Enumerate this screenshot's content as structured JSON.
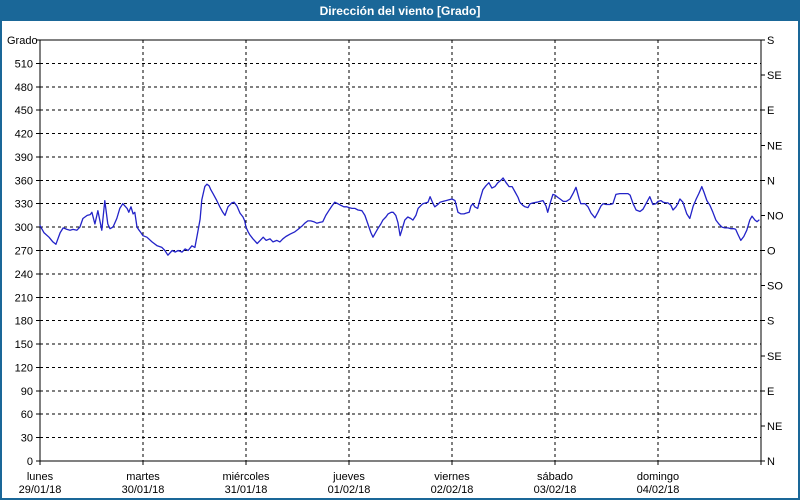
{
  "window": {
    "title": "Dirección del viento [Grado]"
  },
  "chart": {
    "colors": {
      "titlebar": "#1A6798",
      "frame": "#1A6798",
      "line": "#2323C8",
      "grid": "#000000",
      "axis": "#000000",
      "background": "#FFFFFF",
      "text": "#000000"
    },
    "y_axis": {
      "label": "Grado",
      "min": 0,
      "max": 540,
      "tick_step": 30
    },
    "right_axis": {
      "tick_step": 45,
      "labels_bottom_to_top": [
        "N",
        "NE",
        "E",
        "SE",
        "S",
        "SO",
        "O",
        "NO",
        "N",
        "NE",
        "E",
        "SE",
        "S"
      ]
    }
  },
  "chart_data": {
    "type": "line",
    "title": "Dirección del viento [Grado]",
    "ylabel": "Grado",
    "ylim": [
      0,
      540
    ],
    "y_tick_step": 30,
    "grid": "dashed",
    "legend": "none",
    "x_unit": "hours since lunes 29/01/18 00:00",
    "xlim": [
      0,
      168
    ],
    "days": [
      {
        "name": "lunes",
        "date": "29/01/18"
      },
      {
        "name": "martes",
        "date": "30/01/18"
      },
      {
        "name": "miércoles",
        "date": "31/01/18"
      },
      {
        "name": "jueves",
        "date": "01/02/18"
      },
      {
        "name": "viernes",
        "date": "02/02/18"
      },
      {
        "name": "sábado",
        "date": "03/02/18"
      },
      {
        "name": "domingo",
        "date": "04/02/18"
      }
    ],
    "right_axis_compass": [
      "N",
      "NE",
      "E",
      "SE",
      "S",
      "SO",
      "O",
      "NO",
      "N",
      "NE",
      "E",
      "SE",
      "S"
    ],
    "series": [
      {
        "name": "Dirección del viento",
        "color": "#2323C8",
        "points": [
          [
            0.0,
            302
          ],
          [
            0.9,
            293
          ],
          [
            2.1,
            287
          ],
          [
            3.0,
            281
          ],
          [
            3.7,
            278
          ],
          [
            4.7,
            293
          ],
          [
            5.4,
            299
          ],
          [
            6.3,
            297
          ],
          [
            7.0,
            296
          ],
          [
            7.7,
            297
          ],
          [
            8.6,
            296
          ],
          [
            9.3,
            300
          ],
          [
            10.0,
            311
          ],
          [
            11.0,
            315
          ],
          [
            11.7,
            316
          ],
          [
            12.1,
            319
          ],
          [
            12.8,
            304
          ],
          [
            13.5,
            321
          ],
          [
            14.4,
            296
          ],
          [
            15.1,
            334
          ],
          [
            15.8,
            304
          ],
          [
            16.3,
            298
          ],
          [
            17.0,
            300
          ],
          [
            17.9,
            311
          ],
          [
            18.6,
            324
          ],
          [
            19.3,
            330
          ],
          [
            20.3,
            324
          ],
          [
            20.7,
            319
          ],
          [
            21.2,
            326
          ],
          [
            21.7,
            317
          ],
          [
            22.1,
            319
          ],
          [
            22.6,
            300
          ],
          [
            23.1,
            296
          ],
          [
            23.5,
            293
          ],
          [
            24.0,
            289
          ],
          [
            24.9,
            287
          ],
          [
            26.1,
            281
          ],
          [
            27.3,
            276
          ],
          [
            28.4,
            274
          ],
          [
            29.1,
            270
          ],
          [
            29.8,
            264
          ],
          [
            30.8,
            270
          ],
          [
            31.5,
            268
          ],
          [
            32.2,
            270
          ],
          [
            33.1,
            268
          ],
          [
            33.8,
            272
          ],
          [
            34.5,
            270
          ],
          [
            35.4,
            276
          ],
          [
            36.1,
            274
          ],
          [
            36.6,
            289
          ],
          [
            37.3,
            310
          ],
          [
            37.7,
            335
          ],
          [
            38.4,
            352
          ],
          [
            38.9,
            355
          ],
          [
            39.4,
            353
          ],
          [
            39.8,
            348
          ],
          [
            40.3,
            343
          ],
          [
            41.2,
            334
          ],
          [
            41.9,
            326
          ],
          [
            42.6,
            319
          ],
          [
            43.1,
            315
          ],
          [
            43.8,
            326
          ],
          [
            44.7,
            331
          ],
          [
            45.2,
            332
          ],
          [
            45.9,
            327
          ],
          [
            46.6,
            318
          ],
          [
            47.3,
            313
          ],
          [
            47.7,
            308
          ],
          [
            48.0,
            300
          ],
          [
            48.5,
            294
          ],
          [
            48.9,
            290
          ],
          [
            49.6,
            285
          ],
          [
            50.6,
            279
          ],
          [
            51.3,
            283
          ],
          [
            52.0,
            287
          ],
          [
            52.7,
            283
          ],
          [
            53.6,
            285
          ],
          [
            54.3,
            281
          ],
          [
            55.2,
            283
          ],
          [
            55.9,
            281
          ],
          [
            56.6,
            285
          ],
          [
            57.3,
            288
          ],
          [
            58.3,
            291
          ],
          [
            59.4,
            294
          ],
          [
            60.3,
            298
          ],
          [
            61.0,
            301
          ],
          [
            61.7,
            305
          ],
          [
            62.4,
            308
          ],
          [
            63.1,
            308
          ],
          [
            63.8,
            307
          ],
          [
            64.5,
            305
          ],
          [
            65.2,
            306
          ],
          [
            65.9,
            307
          ],
          [
            66.6,
            315
          ],
          [
            67.3,
            321
          ],
          [
            68.0,
            327
          ],
          [
            68.7,
            332
          ],
          [
            69.4,
            330
          ],
          [
            70.1,
            328
          ],
          [
            70.8,
            326
          ],
          [
            71.5,
            326
          ],
          [
            72.0,
            325
          ],
          [
            72.7,
            324
          ],
          [
            73.4,
            324
          ],
          [
            74.1,
            322
          ],
          [
            75.0,
            321
          ],
          [
            75.7,
            315
          ],
          [
            76.4,
            304
          ],
          [
            77.1,
            293
          ],
          [
            77.6,
            287
          ],
          [
            78.3,
            294
          ],
          [
            78.7,
            298
          ],
          [
            79.4,
            304
          ],
          [
            79.9,
            309
          ],
          [
            80.6,
            313
          ],
          [
            81.1,
            317
          ],
          [
            81.8,
            319
          ],
          [
            82.3,
            319
          ],
          [
            82.9,
            315
          ],
          [
            83.4,
            306
          ],
          [
            83.9,
            289
          ],
          [
            84.3,
            296
          ],
          [
            85.0,
            309
          ],
          [
            85.7,
            313
          ],
          [
            86.4,
            311
          ],
          [
            86.9,
            309
          ],
          [
            87.6,
            315
          ],
          [
            88.1,
            324
          ],
          [
            88.8,
            328
          ],
          [
            89.2,
            330
          ],
          [
            89.9,
            331
          ],
          [
            90.4,
            332
          ],
          [
            90.9,
            339
          ],
          [
            91.6,
            330
          ],
          [
            92.0,
            326
          ],
          [
            92.7,
            329
          ],
          [
            93.2,
            332
          ],
          [
            93.9,
            333
          ],
          [
            94.6,
            334
          ],
          [
            95.3,
            335
          ],
          [
            96.0,
            336
          ],
          [
            96.7,
            334
          ],
          [
            97.4,
            319
          ],
          [
            98.1,
            317
          ],
          [
            98.8,
            317
          ],
          [
            99.3,
            318
          ],
          [
            100.0,
            319
          ],
          [
            100.4,
            327
          ],
          [
            100.9,
            330
          ],
          [
            101.3,
            326
          ],
          [
            102.0,
            324
          ],
          [
            102.5,
            335
          ],
          [
            103.2,
            348
          ],
          [
            103.9,
            353
          ],
          [
            104.6,
            357
          ],
          [
            105.3,
            350
          ],
          [
            106.0,
            352
          ],
          [
            106.7,
            357
          ],
          [
            107.4,
            360
          ],
          [
            107.9,
            363
          ],
          [
            108.6,
            357
          ],
          [
            109.3,
            352
          ],
          [
            110.0,
            352
          ],
          [
            110.7,
            345
          ],
          [
            111.4,
            338
          ],
          [
            111.8,
            332
          ],
          [
            112.5,
            328
          ],
          [
            113.0,
            326
          ],
          [
            113.7,
            325
          ],
          [
            114.2,
            330
          ],
          [
            114.9,
            331
          ],
          [
            115.8,
            332
          ],
          [
            116.5,
            333
          ],
          [
            117.2,
            334
          ],
          [
            117.9,
            327
          ],
          [
            118.3,
            319
          ],
          [
            119.0,
            333
          ],
          [
            119.5,
            342
          ],
          [
            120.0,
            341
          ],
          [
            120.7,
            338
          ],
          [
            121.2,
            336
          ],
          [
            121.9,
            333
          ],
          [
            122.6,
            333
          ],
          [
            123.5,
            336
          ],
          [
            124.2,
            343
          ],
          [
            124.9,
            351
          ],
          [
            125.6,
            337
          ],
          [
            126.0,
            330
          ],
          [
            127.0,
            330
          ],
          [
            127.7,
            326
          ],
          [
            128.4,
            318
          ],
          [
            129.3,
            312
          ],
          [
            130.0,
            319
          ],
          [
            130.7,
            327
          ],
          [
            131.2,
            330
          ],
          [
            131.9,
            329
          ],
          [
            132.8,
            329
          ],
          [
            133.5,
            330
          ],
          [
            134.2,
            342
          ],
          [
            135.1,
            343
          ],
          [
            136.1,
            343
          ],
          [
            137.0,
            343
          ],
          [
            137.5,
            341
          ],
          [
            138.2,
            330
          ],
          [
            138.9,
            322
          ],
          [
            139.8,
            320
          ],
          [
            140.5,
            323
          ],
          [
            141.2,
            330
          ],
          [
            142.1,
            339
          ],
          [
            142.8,
            329
          ],
          [
            143.5,
            330
          ],
          [
            144.0,
            333
          ],
          [
            144.7,
            334
          ],
          [
            145.2,
            332
          ],
          [
            145.9,
            331
          ],
          [
            146.3,
            331
          ],
          [
            147.0,
            328
          ],
          [
            147.5,
            322
          ],
          [
            148.2,
            326
          ],
          [
            148.7,
            331
          ],
          [
            149.1,
            336
          ],
          [
            149.8,
            332
          ],
          [
            150.7,
            317
          ],
          [
            151.4,
            311
          ],
          [
            152.2,
            327
          ],
          [
            152.9,
            336
          ],
          [
            153.5,
            343
          ],
          [
            154.2,
            352
          ],
          [
            154.7,
            345
          ],
          [
            155.4,
            334
          ],
          [
            156.1,
            328
          ],
          [
            156.8,
            319
          ],
          [
            157.5,
            309
          ],
          [
            158.2,
            304
          ],
          [
            158.9,
            300
          ],
          [
            159.6,
            299
          ],
          [
            160.3,
            299
          ],
          [
            161.0,
            298
          ],
          [
            161.7,
            298
          ],
          [
            162.1,
            297
          ],
          [
            162.6,
            291
          ],
          [
            163.3,
            283
          ],
          [
            164.0,
            288
          ],
          [
            164.7,
            296
          ],
          [
            165.4,
            309
          ],
          [
            165.9,
            314
          ],
          [
            166.6,
            309
          ],
          [
            167.1,
            307
          ],
          [
            167.5,
            309
          ]
        ]
      }
    ]
  }
}
